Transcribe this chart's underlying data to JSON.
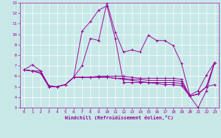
{
  "xlabel": "Windchill (Refroidissement éolien,°C)",
  "background_color": "#c8e8e8",
  "line_color": "#990099",
  "grid_color": "#ffffff",
  "xlim": [
    -0.5,
    23.5
  ],
  "ylim": [
    3,
    13
  ],
  "xticks": [
    0,
    1,
    2,
    3,
    4,
    5,
    6,
    7,
    8,
    9,
    10,
    11,
    12,
    13,
    14,
    15,
    16,
    17,
    18,
    19,
    20,
    21,
    22,
    23
  ],
  "yticks": [
    3,
    4,
    5,
    6,
    7,
    8,
    9,
    10,
    11,
    12,
    13
  ],
  "series": [
    [
      6.6,
      7.1,
      6.5,
      5.0,
      5.0,
      5.2,
      5.9,
      7.0,
      9.6,
      9.4,
      13.0,
      10.2,
      8.3,
      8.5,
      8.3,
      9.9,
      9.4,
      9.4,
      8.9,
      7.2,
      4.2,
      4.6,
      6.1,
      7.3
    ],
    [
      6.6,
      6.5,
      6.5,
      5.1,
      5.0,
      5.2,
      5.9,
      10.3,
      11.2,
      12.3,
      12.7,
      9.6,
      5.4,
      5.4,
      5.4,
      5.4,
      5.4,
      5.4,
      5.4,
      5.3,
      4.1,
      4.3,
      5.0,
      5.2
    ],
    [
      6.6,
      6.5,
      6.3,
      5.0,
      5.0,
      5.2,
      5.9,
      5.9,
      5.9,
      6.0,
      6.0,
      6.0,
      6.0,
      5.9,
      5.8,
      5.8,
      5.8,
      5.8,
      5.8,
      5.7,
      4.1,
      4.3,
      5.0,
      7.3
    ],
    [
      6.6,
      6.5,
      6.3,
      5.0,
      5.0,
      5.2,
      5.9,
      5.9,
      5.9,
      5.9,
      5.9,
      5.8,
      5.8,
      5.7,
      5.7,
      5.6,
      5.6,
      5.6,
      5.6,
      5.5,
      4.1,
      4.3,
      5.0,
      7.3
    ],
    [
      6.6,
      6.5,
      6.3,
      5.0,
      5.0,
      5.2,
      5.9,
      5.9,
      5.9,
      5.9,
      5.9,
      5.8,
      5.7,
      5.6,
      5.5,
      5.4,
      5.3,
      5.2,
      5.2,
      5.1,
      4.1,
      3.0,
      4.6,
      7.3
    ]
  ]
}
